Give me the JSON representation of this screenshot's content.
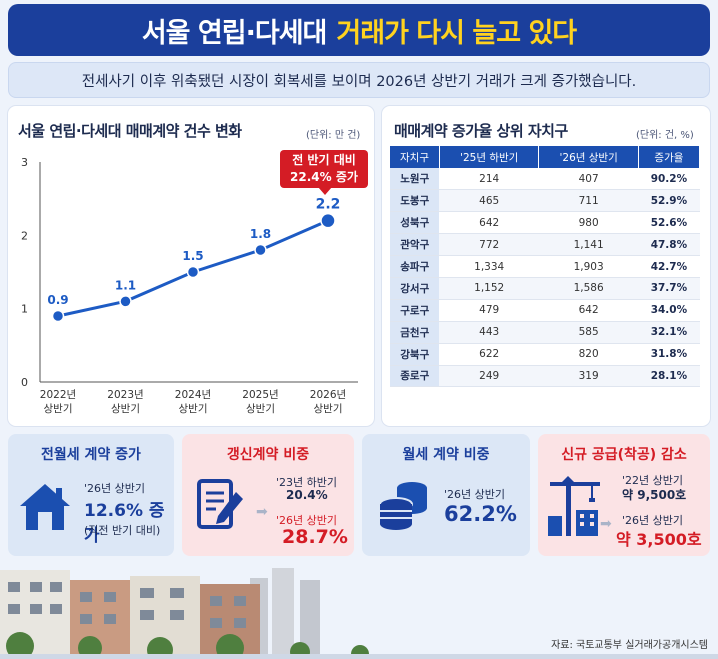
{
  "header": {
    "title_main": "서울 연립·다세대",
    "title_highlight": "거래가 다시 늘고 있다",
    "subtitle": "전세사기 이후 위축됐던 시장이 회복세를 보이며 2026년 상반기 거래가 크게 증가했습니다."
  },
  "line_panel": {
    "title": "서울 연립·다세대 매매계약 건수 변화",
    "unit": "(단위: 만 건)",
    "callout_line1": "전 반기 대비",
    "callout_line2": "22.4% 증가"
  },
  "chart_data": [
    {
      "type": "line",
      "title": "서울 연립·다세대 매매계약 건수 변화",
      "ylabel": "(단위: 만 건)",
      "categories": [
        "2022년 상반기",
        "2023년 상반기",
        "2024년 상반기",
        "2025년 상반기",
        "2026년 상반기"
      ],
      "category_lines": [
        [
          "2022년",
          "상반기"
        ],
        [
          "2023년",
          "상반기"
        ],
        [
          "2024년",
          "상반기"
        ],
        [
          "2025년",
          "상반기"
        ],
        [
          "2026년",
          "상반기"
        ]
      ],
      "values": [
        0.9,
        1.1,
        1.5,
        1.8,
        2.2
      ],
      "value_labels": [
        "0.9",
        "1.1",
        "1.5",
        "1.8",
        "2.2"
      ],
      "ylim": [
        0,
        3
      ],
      "yticks": [
        "0",
        "1",
        "2",
        "3"
      ],
      "grid": false,
      "color": "#1d5bc4"
    },
    {
      "type": "table",
      "title": "매매계약 증가율 상위 자치구",
      "unit": "(단위: 건, %)",
      "columns": [
        "자치구",
        "'25년 하반기",
        "'26년 상반기",
        "증가율"
      ],
      "rows": [
        [
          "노원구",
          "214",
          "407",
          "90.2%"
        ],
        [
          "도봉구",
          "465",
          "711",
          "52.9%"
        ],
        [
          "성북구",
          "642",
          "980",
          "52.6%"
        ],
        [
          "관악구",
          "772",
          "1,141",
          "47.8%"
        ],
        [
          "송파구",
          "1,334",
          "1,903",
          "42.7%"
        ],
        [
          "강서구",
          "1,152",
          "1,586",
          "37.7%"
        ],
        [
          "구로구",
          "479",
          "642",
          "34.0%"
        ],
        [
          "금천구",
          "443",
          "585",
          "32.1%"
        ],
        [
          "강북구",
          "622",
          "820",
          "31.8%"
        ],
        [
          "종로구",
          "249",
          "319",
          "28.1%"
        ]
      ]
    }
  ],
  "cards": {
    "rent": {
      "title": "전월세 계약 증가",
      "period": "'26년 상반기",
      "value": "12.6% 증가",
      "note": "(직전 반기 대비)",
      "icon": "house-icon"
    },
    "renewal": {
      "title": "갱신계약 비중",
      "before_label": "'23년 하반기",
      "before_value": "20.4%",
      "after_label": "'26년 상반기",
      "after_value": "28.7%",
      "icon": "contract-icon"
    },
    "monthly": {
      "title": "월세 계약 비중",
      "period": "'26년 상반기",
      "value": "62.2%",
      "icon": "coins-icon"
    },
    "supply": {
      "title": "신규 공급(착공) 감소",
      "before_label": "'22년 상반기",
      "before_value": "약 9,500호",
      "after_label": "'26년 상반기",
      "after_value": "약 3,500호",
      "icon": "crane-icon"
    }
  },
  "source": "자료: 국토교통부 실거래가공개시스템",
  "colors": {
    "navy": "#1b3f9c",
    "accent_yellow": "#ffd21f",
    "red": "#d41c25",
    "line_blue": "#1d5bc4"
  }
}
